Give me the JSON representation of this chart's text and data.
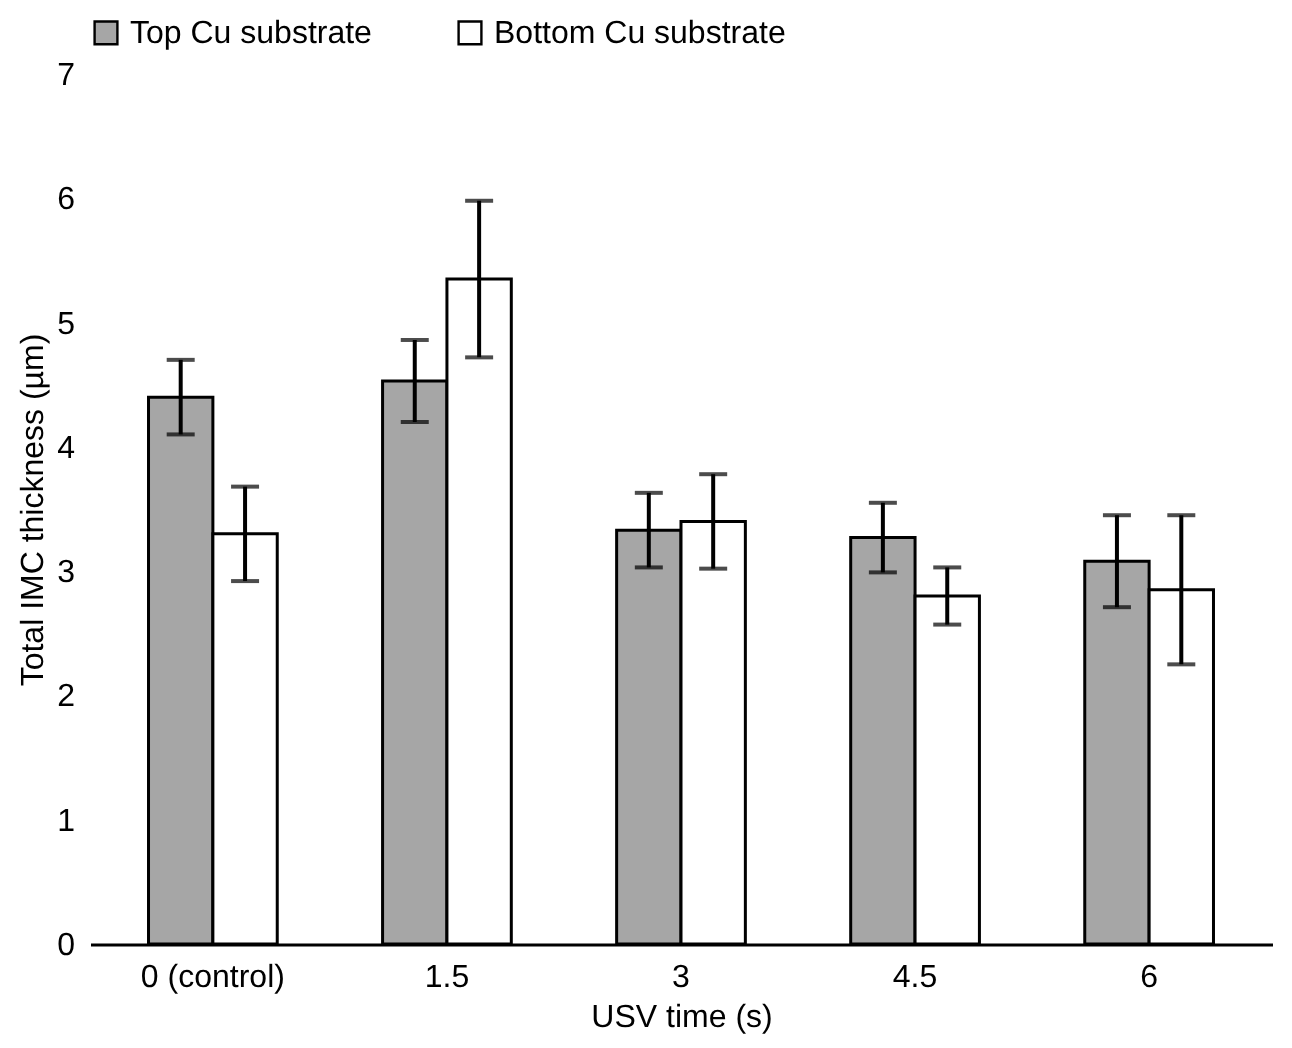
{
  "chart_data": {
    "type": "bar",
    "xlabel": "USV time (s)",
    "ylabel": "Total IMC thickness (µm)",
    "categories": [
      "0 (control)",
      "1.5",
      "3",
      "4.5",
      "6"
    ],
    "series": [
      {
        "name": "Top Cu substrate",
        "color": "#a6a6a6",
        "values": [
          4.4,
          4.53,
          3.33,
          3.27,
          3.08
        ],
        "errors": [
          0.3,
          0.33,
          0.3,
          0.28,
          0.37
        ]
      },
      {
        "name": "Bottom Cu substrate",
        "color": "#ffffff",
        "values": [
          3.3,
          5.35,
          3.4,
          2.8,
          2.85
        ],
        "errors": [
          0.38,
          0.63,
          0.38,
          0.23,
          0.6
        ]
      }
    ],
    "ylim": [
      0,
      7
    ],
    "yticks": [
      0,
      1,
      2,
      3,
      4,
      5,
      6,
      7
    ],
    "legend": "top"
  }
}
